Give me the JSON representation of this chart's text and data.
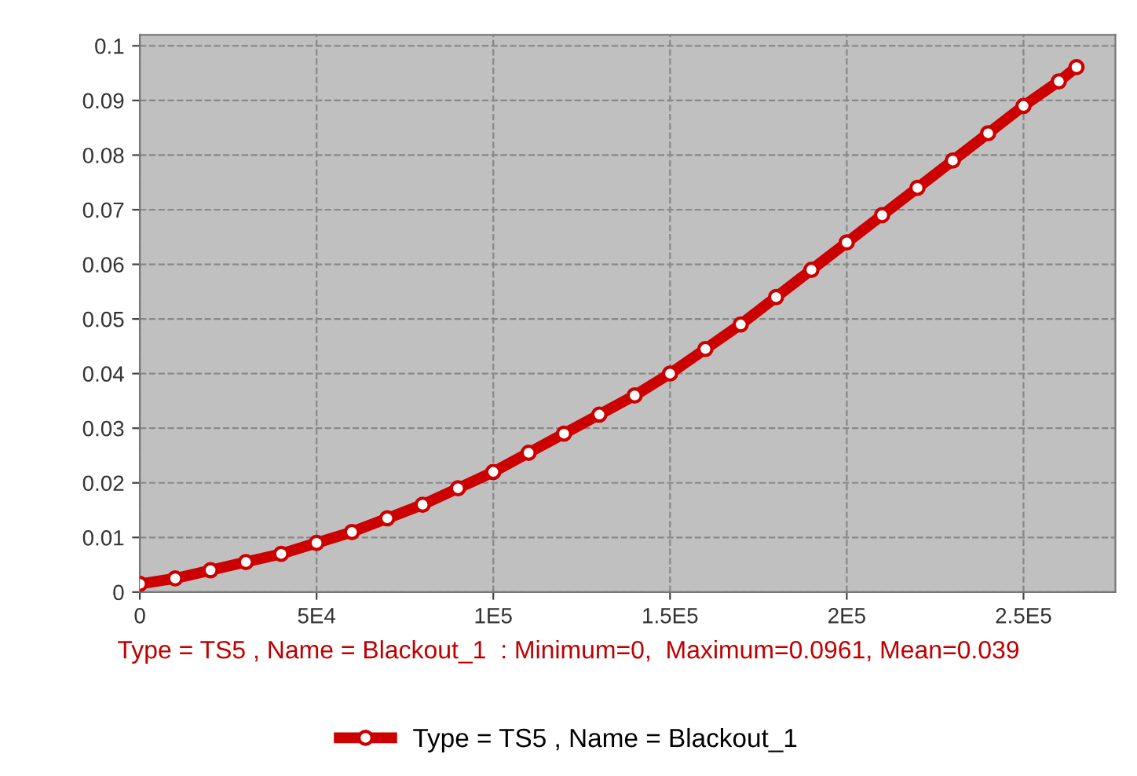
{
  "chart_data": {
    "type": "line",
    "x": [
      0,
      10000,
      20000,
      30000,
      40000,
      50000,
      60000,
      70000,
      80000,
      90000,
      100000,
      110000,
      120000,
      130000,
      140000,
      150000,
      160000,
      170000,
      180000,
      190000,
      200000,
      210000,
      220000,
      230000,
      240000,
      250000,
      260000,
      265000
    ],
    "series": [
      {
        "name": "Type = TS5 , Name = Blackout_1",
        "color": "#cc0000",
        "values": [
          0.0015,
          0.0025,
          0.004,
          0.0055,
          0.007,
          0.009,
          0.011,
          0.0135,
          0.016,
          0.019,
          0.022,
          0.0255,
          0.029,
          0.0325,
          0.036,
          0.04,
          0.0445,
          0.049,
          0.054,
          0.059,
          0.064,
          0.069,
          0.074,
          0.079,
          0.084,
          0.089,
          0.0935,
          0.0961
        ]
      }
    ],
    "xlim": [
      0,
      276000
    ],
    "ylim": [
      0,
      0.102
    ],
    "xticks": [
      0,
      {
        "value": 50000,
        "label": "5E4"
      },
      {
        "value": 100000,
        "label": "1E5"
      },
      {
        "value": 150000,
        "label": "1.5E5"
      },
      {
        "value": 200000,
        "label": "2E5"
      },
      {
        "value": 250000,
        "label": "2.5E5"
      }
    ],
    "yticks": [
      0,
      0.01,
      0.02,
      0.03,
      0.04,
      0.05,
      0.06,
      0.07,
      0.08,
      0.09,
      0.1
    ],
    "annotations": [
      "Type = TS5 , Name = Blackout_1  : Minimum=0,  Maximum=0.0961, Mean=0.039"
    ],
    "grid": true,
    "legend": "bottom",
    "marker": "circle",
    "line_style": "solid"
  }
}
